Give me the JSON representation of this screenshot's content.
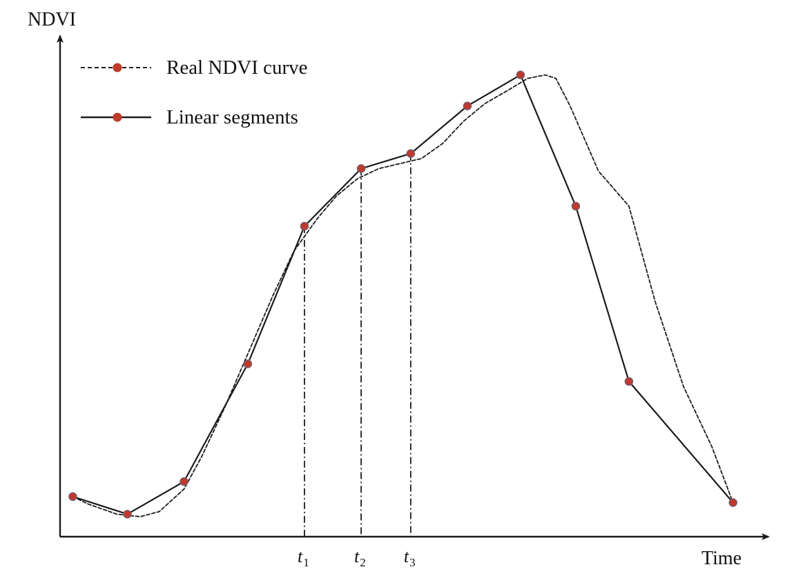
{
  "chart_data": {
    "type": "line",
    "title": "",
    "xlabel": "Time",
    "ylabel": "NDVI",
    "grid": false,
    "legend_position": "top-left",
    "xlim": [
      0,
      100
    ],
    "ylim": [
      0,
      100
    ],
    "colors": {
      "line": "#1a1a1a",
      "marker": "#c0392b",
      "axis": "#1a1a1a",
      "marker_edge": "#7a5a6a"
    },
    "series": [
      {
        "name": "Real NDVI curve",
        "style": "dashed",
        "x": [
          1.8,
          4,
          8,
          11.3,
          14,
          17.5,
          20,
          23.3,
          26.5,
          30,
          33,
          36.3,
          39,
          42,
          45,
          48,
          51,
          54,
          57,
          60,
          63.3,
          66,
          68.5,
          70,
          72,
          76,
          80.3,
          84,
          88,
          92,
          95
        ],
        "y": [
          8,
          6.5,
          4.5,
          4,
          5,
          9.5,
          16,
          26,
          36.5,
          48,
          57,
          63.5,
          68,
          71.5,
          73.5,
          74.5,
          75.5,
          78.5,
          83,
          86.5,
          89.2,
          91.5,
          92.2,
          91.5,
          86,
          73,
          66,
          47,
          30,
          18,
          6.8
        ]
      },
      {
        "name": "Linear segments",
        "style": "solid",
        "x": [
          1.8,
          9.5,
          17.5,
          26.5,
          34.5,
          42.5,
          49.5,
          57.5,
          65,
          72.8,
          80.3,
          95
        ],
        "y": [
          8,
          4.5,
          11,
          34.5,
          62,
          73.5,
          76.5,
          86,
          92.2,
          66,
          31,
          6.8
        ]
      }
    ],
    "reference_lines": [
      {
        "label": "t",
        "sub": "1",
        "x": 34.5,
        "y": 62
      },
      {
        "label": "t",
        "sub": "2",
        "x": 42.5,
        "y": 73.5
      },
      {
        "label": "t",
        "sub": "3",
        "x": 49.5,
        "y": 76.5
      }
    ]
  }
}
